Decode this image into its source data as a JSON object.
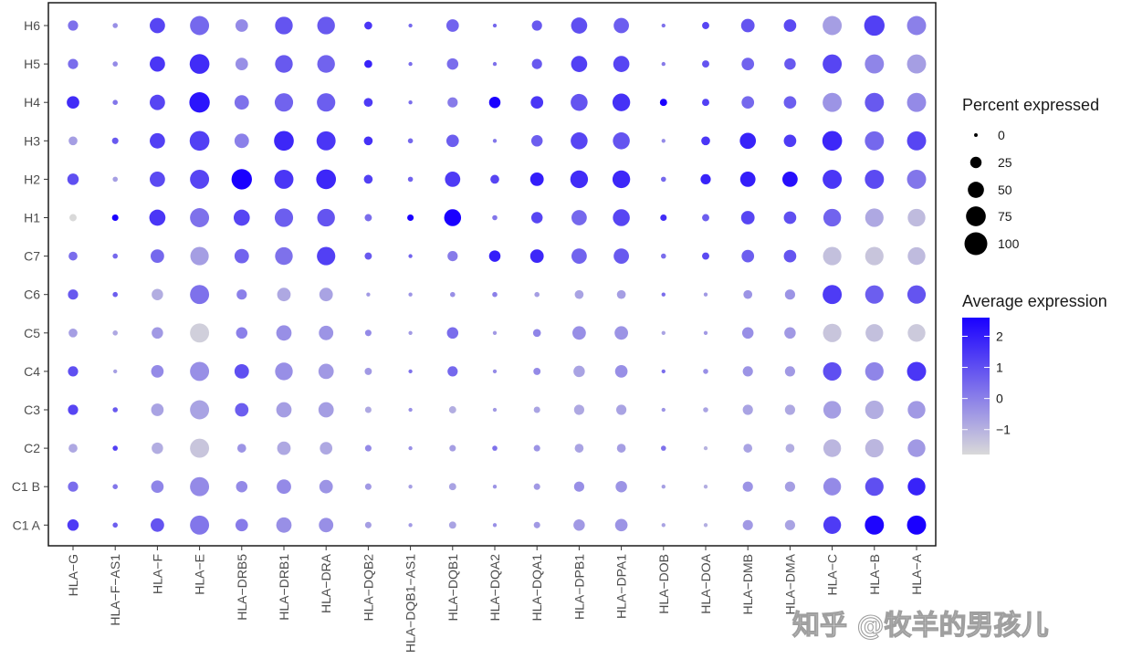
{
  "chart_data": {
    "type": "dotplot",
    "x_categories": [
      "HLA-G",
      "HLA-F-AS1",
      "HLA-F",
      "HLA-E",
      "HLA-DRB5",
      "HLA-DRB1",
      "HLA-DRA",
      "HLA-DQB2",
      "HLA-DQB1-AS1",
      "HLA-DQB1",
      "HLA-DQA2",
      "HLA-DQA1",
      "HLA-DPB1",
      "HLA-DPA1",
      "HLA-DOB",
      "HLA-DOA",
      "HLA-DMB",
      "HLA-DMA",
      "HLA-C",
      "HLA-B",
      "HLA-A"
    ],
    "y_categories": [
      "H6",
      "H5",
      "H4",
      "H3",
      "H2",
      "H1",
      "C7",
      "C6",
      "C5",
      "C4",
      "C3",
      "C2",
      "C1 B",
      "C1 A"
    ],
    "x_tick_labels": [
      "HLA−G",
      "HLA−F−AS1",
      "HLA−F",
      "HLA−E",
      "HLA−DRB5",
      "HLA−DRB1",
      "HLA−DRA",
      "HLA−DQB2",
      "HLA−DQB1−AS1",
      "HLA−DQB1",
      "HLA−DQA2",
      "HLA−DQA1",
      "HLA−DPB1",
      "HLA−DPA1",
      "HLA−DOB",
      "HLA−DOA",
      "HLA−DMB",
      "HLA−DMA",
      "HLA−C",
      "HLA−B",
      "HLA−A"
    ],
    "percent_expressed": [
      [
        20,
        5,
        45,
        70,
        30,
        60,
        60,
        12,
        3,
        30,
        3,
        20,
        50,
        45,
        3,
        10,
        35,
        30,
        70,
        80,
        70
      ],
      [
        20,
        5,
        45,
        75,
        30,
        60,
        60,
        12,
        3,
        25,
        3,
        20,
        50,
        50,
        3,
        10,
        30,
        25,
        70,
        70,
        70
      ],
      [
        30,
        5,
        45,
        80,
        40,
        65,
        65,
        15,
        3,
        20,
        25,
        30,
        55,
        60,
        10,
        10,
        30,
        30,
        70,
        70,
        70
      ],
      [
        15,
        8,
        45,
        75,
        40,
        75,
        70,
        15,
        5,
        30,
        3,
        25,
        55,
        55,
        3,
        15,
        50,
        30,
        75,
        70,
        70
      ],
      [
        25,
        5,
        45,
        70,
        80,
        70,
        75,
        15,
        5,
        45,
        15,
        35,
        60,
        60,
        5,
        20,
        45,
        45,
        70,
        70,
        70
      ],
      [
        10,
        8,
        50,
        70,
        50,
        65,
        60,
        10,
        8,
        55,
        5,
        25,
        45,
        55,
        8,
        10,
        35,
        30,
        60,
        65,
        60
      ],
      [
        15,
        5,
        35,
        65,
        40,
        60,
        65,
        10,
        3,
        20,
        25,
        35,
        45,
        45,
        5,
        10,
        30,
        30,
        65,
        65,
        60
      ],
      [
        20,
        5,
        25,
        70,
        20,
        35,
        35,
        3,
        3,
        5,
        5,
        5,
        15,
        15,
        3,
        3,
        15,
        20,
        70,
        65,
        65
      ],
      [
        15,
        5,
        25,
        70,
        25,
        45,
        40,
        8,
        3,
        25,
        3,
        12,
        35,
        35,
        3,
        3,
        25,
        25,
        65,
        60,
        60
      ],
      [
        20,
        3,
        30,
        70,
        40,
        60,
        45,
        10,
        3,
        20,
        3,
        10,
        25,
        30,
        3,
        5,
        20,
        20,
        65,
        65,
        70
      ],
      [
        20,
        5,
        30,
        70,
        35,
        45,
        45,
        8,
        3,
        10,
        3,
        8,
        20,
        20,
        3,
        5,
        20,
        20,
        60,
        65,
        60
      ],
      [
        15,
        5,
        25,
        70,
        15,
        35,
        30,
        8,
        3,
        8,
        5,
        8,
        15,
        15,
        5,
        3,
        15,
        15,
        60,
        65,
        60
      ],
      [
        20,
        5,
        30,
        70,
        25,
        40,
        35,
        8,
        3,
        10,
        3,
        8,
        20,
        25,
        3,
        3,
        20,
        20,
        60,
        65,
        60
      ],
      [
        25,
        5,
        35,
        70,
        30,
        45,
        40,
        8,
        3,
        10,
        3,
        8,
        25,
        30,
        3,
        3,
        20,
        20,
        60,
        70,
        70
      ]
    ],
    "average_expression": [
      [
        0.3,
        -0.3,
        1.2,
        0.5,
        -0.2,
        0.9,
        0.8,
        1.5,
        0.5,
        0.6,
        0.5,
        0.8,
        1.0,
        0.7,
        0.3,
        1.2,
        0.9,
        1.1,
        -0.6,
        1.3,
        0.0
      ],
      [
        0.4,
        -0.2,
        1.5,
        1.7,
        -0.3,
        0.8,
        0.6,
        1.9,
        0.4,
        0.4,
        0.3,
        0.8,
        1.3,
        1.2,
        0.1,
        0.9,
        0.6,
        0.8,
        1.2,
        -0.1,
        -0.6
      ],
      [
        1.7,
        0.2,
        1.2,
        2.2,
        0.3,
        0.6,
        0.7,
        1.4,
        0.4,
        0.1,
        2.6,
        1.5,
        0.9,
        1.6,
        2.6,
        1.3,
        0.5,
        0.7,
        -0.4,
        0.8,
        -0.2
      ],
      [
        -0.6,
        0.8,
        1.3,
        1.3,
        0.0,
        1.8,
        1.5,
        1.6,
        0.5,
        0.7,
        0.2,
        0.7,
        1.2,
        0.9,
        -0.2,
        1.5,
        1.9,
        1.4,
        1.8,
        0.5,
        1.2
      ],
      [
        1.0,
        -0.6,
        1.1,
        1.2,
        2.6,
        1.5,
        1.8,
        1.3,
        0.6,
        1.4,
        1.2,
        2.0,
        1.7,
        1.8,
        0.5,
        1.9,
        2.0,
        2.3,
        1.5,
        1.1,
        0.2
      ],
      [
        -1.8,
        2.6,
        1.5,
        0.3,
        1.2,
        0.7,
        0.9,
        0.4,
        2.6,
        2.6,
        0.2,
        1.2,
        0.5,
        1.2,
        1.7,
        0.7,
        1.2,
        1.0,
        0.6,
        -0.8,
        -1.2
      ],
      [
        0.4,
        0.5,
        0.5,
        -0.6,
        0.6,
        0.3,
        1.3,
        0.8,
        0.6,
        0.1,
        2.0,
        1.8,
        0.6,
        0.8,
        0.4,
        1.1,
        0.7,
        0.9,
        -1.3,
        -1.4,
        -1.2
      ],
      [
        0.8,
        0.7,
        -0.9,
        0.3,
        0.0,
        -0.8,
        -0.7,
        -0.5,
        -0.4,
        -0.3,
        0.0,
        -0.6,
        -0.7,
        -0.6,
        0.4,
        -0.5,
        -0.4,
        -0.4,
        1.4,
        0.7,
        0.9
      ],
      [
        -0.6,
        -0.8,
        -0.5,
        -1.6,
        0.0,
        -0.3,
        -0.4,
        -0.2,
        -0.5,
        0.4,
        -0.5,
        -0.1,
        -0.3,
        -0.4,
        -0.7,
        -0.5,
        -0.3,
        -0.5,
        -1.4,
        -1.3,
        -1.5
      ],
      [
        1.0,
        -0.6,
        -0.2,
        -0.3,
        1.0,
        -0.3,
        -0.5,
        -0.5,
        0.3,
        0.5,
        -0.2,
        -0.2,
        -0.7,
        -0.3,
        0.4,
        -0.3,
        -0.4,
        -0.5,
        1.0,
        -0.1,
        1.5
      ],
      [
        1.2,
        0.8,
        -0.7,
        -0.7,
        0.7,
        -0.6,
        -0.6,
        -0.8,
        -0.3,
        -0.9,
        -0.5,
        -0.7,
        -0.8,
        -0.7,
        -0.4,
        -0.7,
        -0.7,
        -0.8,
        -0.6,
        -0.9,
        -0.5
      ],
      [
        -0.8,
        1.3,
        -0.9,
        -1.4,
        -0.4,
        -0.8,
        -0.8,
        -0.2,
        -0.3,
        -0.6,
        0.3,
        -0.4,
        -0.7,
        -0.6,
        0.3,
        -1.0,
        -0.7,
        -0.9,
        -1.1,
        -1.1,
        -0.5
      ],
      [
        0.4,
        0.2,
        -0.1,
        -0.2,
        -0.2,
        -0.2,
        -0.4,
        -0.5,
        -0.6,
        -0.7,
        -0.4,
        -0.5,
        -0.3,
        -0.4,
        -0.6,
        -0.9,
        -0.4,
        -0.6,
        -0.2,
        1.0,
        1.9
      ],
      [
        1.4,
        0.7,
        0.9,
        0.2,
        0.1,
        -0.3,
        -0.3,
        -0.6,
        -0.5,
        -0.7,
        -0.3,
        -0.5,
        -0.5,
        -0.4,
        -0.7,
        -0.9,
        -0.5,
        -0.7,
        1.4,
        2.5,
        2.6
      ]
    ],
    "size_legend": {
      "title": "Percent expressed",
      "values": [
        0,
        25,
        50,
        75,
        100
      ],
      "labels": [
        "0",
        "25",
        "50",
        "75",
        "100"
      ]
    },
    "color_legend": {
      "title": "Average expression",
      "range": [
        -1.8,
        2.6
      ],
      "ticks": [
        2,
        1,
        0,
        -1
      ],
      "tick_labels": [
        "2",
        "1",
        "0",
        "−1"
      ],
      "low_color": "#d9d9d9",
      "high_color": "#1a00ff"
    },
    "legend_position": "right",
    "grid": false
  },
  "watermark": {
    "text": "知乎 @牧羊的男孩儿"
  }
}
